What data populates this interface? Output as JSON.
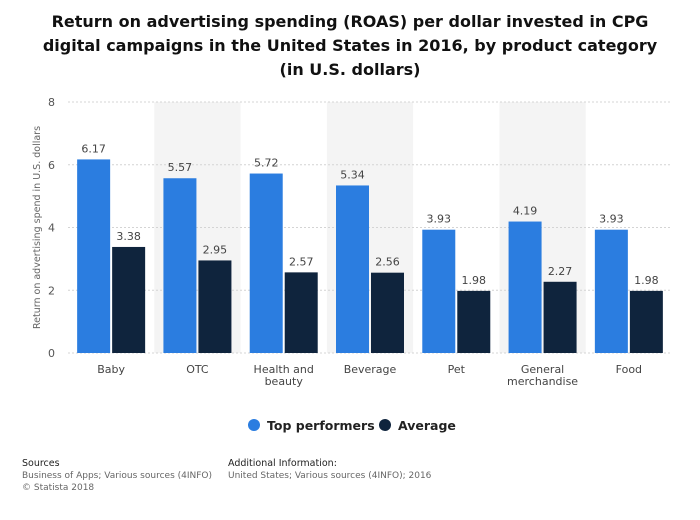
{
  "title_lines": [
    "Return on advertising spending (ROAS) per dollar invested in CPG",
    "digital campaigns in the United States in 2016, by product category",
    "(in U.S. dollars)"
  ],
  "chart_data": {
    "type": "bar",
    "title": "Return on advertising spending (ROAS) per dollar invested in CPG digital campaigns in the United States in 2016, by product category (in U.S. dollars)",
    "ylabel": "Return on advertising spend in U.S. dollars",
    "ylim": [
      0,
      8
    ],
    "yticks": [
      0,
      2,
      4,
      6,
      8
    ],
    "categories": [
      [
        "Baby"
      ],
      [
        "OTC"
      ],
      [
        "Health and",
        "beauty"
      ],
      [
        "Beverage"
      ],
      [
        "Pet"
      ],
      [
        "General",
        "merchandise"
      ],
      [
        "Food"
      ]
    ],
    "series": [
      {
        "name": "Top performers",
        "color": "#2b7de0",
        "values": [
          6.17,
          5.57,
          5.72,
          5.34,
          3.93,
          4.19,
          3.93
        ]
      },
      {
        "name": "Average",
        "color": "#0f243d",
        "values": [
          3.38,
          2.95,
          2.57,
          2.56,
          1.98,
          2.27,
          1.98
        ]
      }
    ],
    "legend_position": "bottom",
    "grid": true
  },
  "footer": {
    "sources_title": "Sources",
    "sources_lines": [
      "Business of Apps; Various sources (4INFO)",
      "© Statista 2018"
    ],
    "info_title": "Additional Information:",
    "info_lines": [
      "United States; Various sources (4INFO); 2016"
    ]
  }
}
